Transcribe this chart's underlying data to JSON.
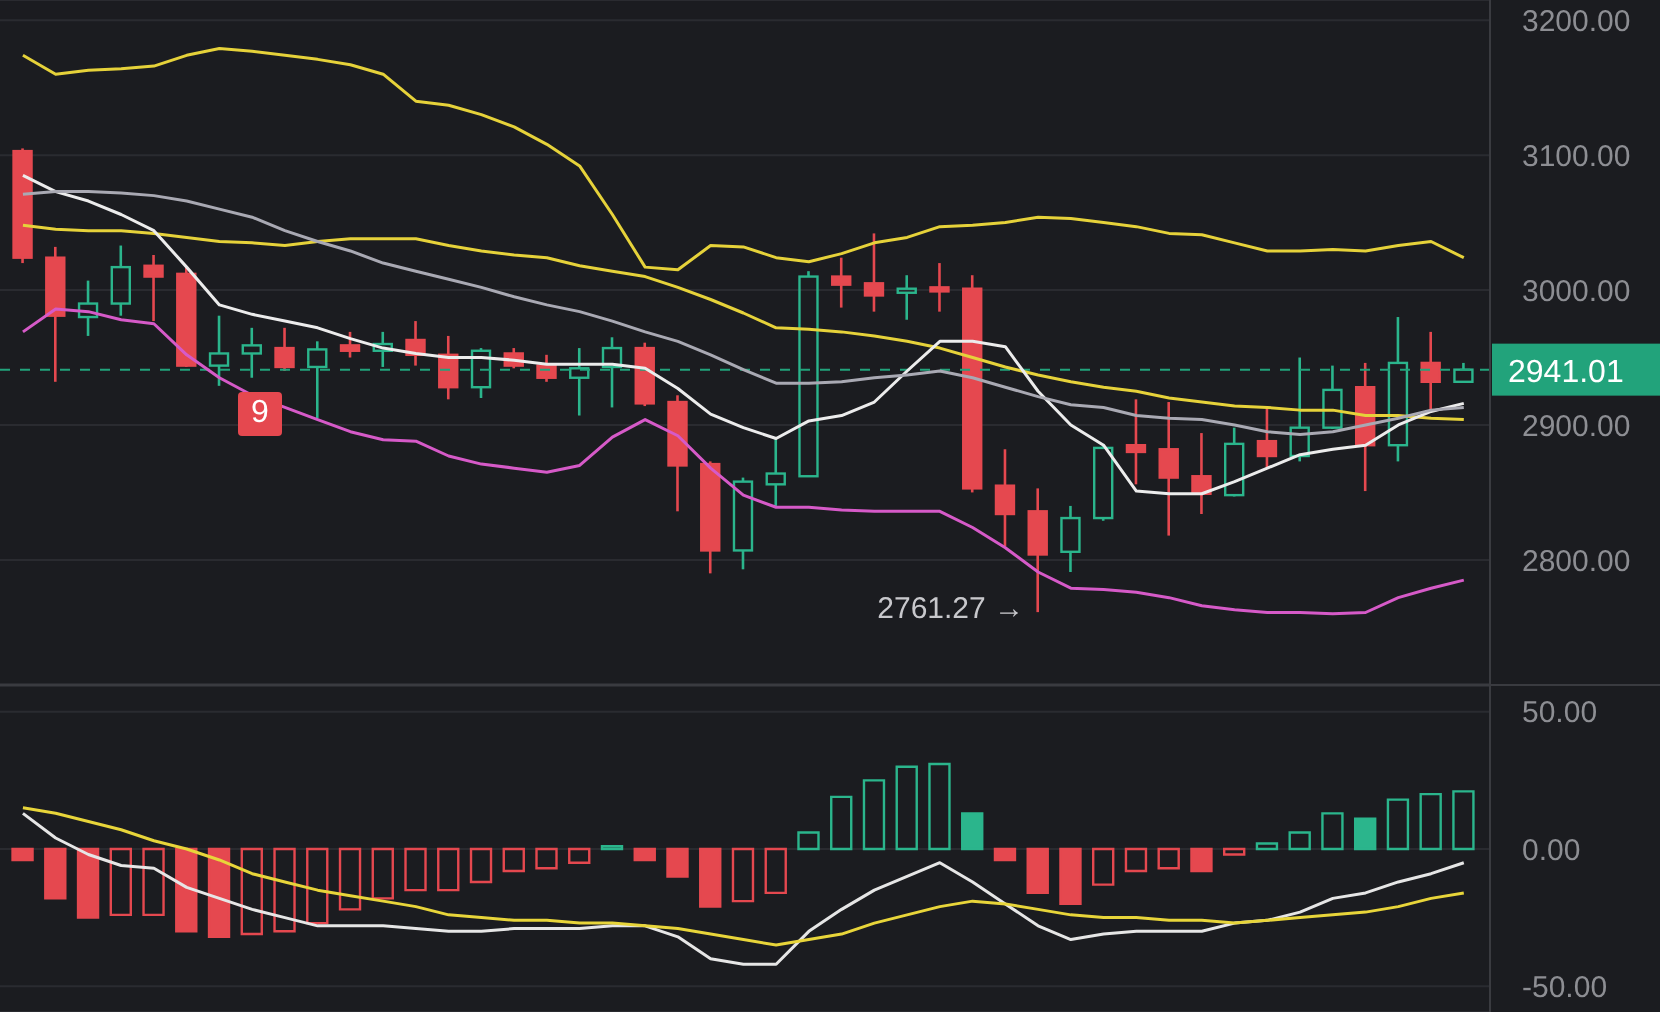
{
  "chart_data": [
    {
      "type": "candlestick",
      "categories": [
        null,
        null,
        null,
        null,
        null,
        null,
        null,
        null,
        null,
        null,
        null,
        null,
        null,
        null,
        null,
        null,
        null,
        null,
        null,
        null,
        null,
        null,
        null,
        null,
        null,
        null,
        null,
        null,
        null,
        null,
        null,
        null,
        null,
        null,
        null,
        null,
        null,
        null,
        null,
        null,
        null,
        null,
        null,
        null,
        null
      ],
      "ohlc": [
        [
          3103,
          3105,
          3020,
          3024
        ],
        [
          3024,
          3032,
          2932,
          2981
        ],
        [
          2980,
          3007,
          2966,
          2990
        ],
        [
          2990,
          3033,
          2981,
          3017
        ],
        [
          3018,
          3026,
          2977,
          3010
        ],
        [
          3012,
          3017,
          2943,
          2944
        ],
        [
          2944,
          2981,
          2929,
          2953
        ],
        [
          2953,
          2972,
          2935,
          2959
        ],
        [
          2957,
          2972,
          2940,
          2943
        ],
        [
          2943,
          2962,
          2905,
          2956
        ],
        [
          2959,
          2969,
          2950,
          2955
        ],
        [
          2955,
          2969,
          2943,
          2960
        ],
        [
          2963,
          2977,
          2944,
          2952
        ],
        [
          2952,
          2966,
          2919,
          2928
        ],
        [
          2928,
          2957,
          2920,
          2955
        ],
        [
          2953,
          2957,
          2942,
          2944
        ],
        [
          2944,
          2952,
          2932,
          2935
        ],
        [
          2935,
          2957,
          2907,
          2942
        ],
        [
          2943,
          2965,
          2913,
          2957
        ],
        [
          2957,
          2961,
          2914,
          2916
        ],
        [
          2917,
          2922,
          2836,
          2870
        ],
        [
          2871,
          2873,
          2790,
          2807
        ],
        [
          2807,
          2861,
          2793,
          2858
        ],
        [
          2856,
          2891,
          2840,
          2864
        ],
        [
          2862,
          3014,
          2862,
          3010
        ],
        [
          3010,
          3024,
          2987,
          3004
        ],
        [
          3005,
          3042,
          2984,
          2996
        ],
        [
          2998,
          3011,
          2978,
          3001
        ],
        [
          3002,
          3020,
          2984,
          2999
        ],
        [
          3001,
          3011,
          2850,
          2853
        ],
        [
          2855,
          2882,
          2810,
          2834
        ],
        [
          2836,
          2853,
          2761.27,
          2804
        ],
        [
          2806,
          2840,
          2791,
          2831
        ],
        [
          2831,
          2886,
          2829,
          2883
        ],
        [
          2885,
          2919,
          2856,
          2880
        ],
        [
          2882,
          2917,
          2818,
          2861
        ],
        [
          2862,
          2894,
          2834,
          2849
        ],
        [
          2848,
          2898,
          2847,
          2886
        ],
        [
          2888,
          2913,
          2868,
          2877
        ],
        [
          2877,
          2950,
          2873,
          2898
        ],
        [
          2898,
          2944,
          2897,
          2926
        ],
        [
          2928,
          2946,
          2851,
          2885
        ],
        [
          2885,
          2980,
          2873,
          2946
        ],
        [
          2946,
          2969,
          2910,
          2932
        ],
        [
          2932,
          2946,
          2932,
          2941.01
        ]
      ],
      "colors": [
        "#e5484f",
        "#e5484f",
        "#2bb58c",
        "#2bb58c",
        "#e5484f",
        "#e5484f",
        "#2bb58c",
        "#2bb58c",
        "#e5484f",
        "#2bb58c",
        "#e5484f",
        "#2bb58c",
        "#e5484f",
        "#e5484f",
        "#2bb58c",
        "#e5484f",
        "#e5484f",
        "#2bb58c",
        "#2bb58c",
        "#e5484f",
        "#e5484f",
        "#e5484f",
        "#2bb58c",
        "#2bb58c",
        "#2bb58c",
        "#e5484f",
        "#e5484f",
        "#2bb58c",
        "#e5484f",
        "#e5484f",
        "#e5484f",
        "#e5484f",
        "#2bb58c",
        "#2bb58c",
        "#e5484f",
        "#e5484f",
        "#e5484f",
        "#2bb58c",
        "#e5484f",
        "#2bb58c",
        "#2bb58c",
        "#e5484f",
        "#2bb58c",
        "#e5484f",
        "#2bb58c"
      ],
      "series": [
        {
          "type": "line",
          "color": "#e6d23a",
          "values": [
            3174,
            3160,
            3163,
            3164,
            3166,
            3174,
            3179,
            3177,
            3174,
            3171,
            3167,
            3160,
            3140,
            3137,
            3130,
            3121,
            3108,
            3092,
            3056,
            3017,
            3015,
            3033,
            3032,
            3024,
            3021,
            3027,
            3035,
            3039,
            3047,
            3048,
            3050,
            3054,
            3053,
            3050,
            3047,
            3042,
            3041,
            3035,
            3029,
            3029,
            3030,
            3029,
            3033,
            3036,
            3024
          ]
        },
        {
          "type": "line",
          "color": "#e6d23a",
          "values": [
            3048,
            3045,
            3044,
            3044,
            3042,
            3039,
            3036,
            3035,
            3033,
            3036,
            3038,
            3038,
            3038,
            3033,
            3029,
            3026,
            3024,
            3018,
            3014,
            3010,
            3002,
            2993,
            2983,
            2972,
            2971,
            2969,
            2966,
            2962,
            2957,
            2950,
            2943,
            2937,
            2932,
            2928,
            2925,
            2920,
            2917,
            2914,
            2913,
            2911,
            2911,
            2907,
            2907,
            2905,
            2904
          ]
        },
        {
          "type": "line",
          "color": "#d65ac8",
          "values": [
            2969,
            2986,
            2984,
            2978,
            2975,
            2952,
            2935,
            2922,
            2913,
            2904,
            2895,
            2889,
            2888,
            2877,
            2871,
            2868,
            2865,
            2870,
            2891,
            2904,
            2892,
            2868,
            2848,
            2839,
            2839,
            2837,
            2836,
            2836,
            2836,
            2824,
            2809,
            2791,
            2779,
            2778,
            2776,
            2772,
            2766,
            2763,
            2761,
            2761,
            2760,
            2761,
            2772,
            2779,
            2785
          ]
        },
        {
          "type": "line",
          "color": "#ececec",
          "values": [
            3085,
            3073,
            3066,
            3056,
            3044,
            3017,
            2989,
            2982,
            2977,
            2972,
            2964,
            2957,
            2953,
            2950,
            2950,
            2948,
            2945,
            2945,
            2945,
            2942,
            2927,
            2908,
            2898,
            2890,
            2903,
            2907,
            2917,
            2940,
            2962,
            2962,
            2958,
            2925,
            2900,
            2885,
            2851,
            2849,
            2849,
            2858,
            2868,
            2878,
            2882,
            2885,
            2900,
            2910,
            2916
          ]
        },
        {
          "type": "line",
          "color": "#a9a9b3",
          "values": [
            3071,
            3073,
            3073,
            3072,
            3070,
            3066,
            3060,
            3054,
            3044,
            3036,
            3029,
            3020,
            3014,
            3008,
            3002,
            2995,
            2989,
            2984,
            2977,
            2969,
            2962,
            2952,
            2941,
            2931,
            2931,
            2932,
            2935,
            2937,
            2940,
            2935,
            2928,
            2921,
            2915,
            2913,
            2907,
            2905,
            2904,
            2900,
            2895,
            2893,
            2895,
            2900,
            2905,
            2911,
            2913
          ]
        }
      ],
      "ylim": [
        2708,
        3215
      ],
      "yticks": [
        {
          "value": 2800,
          "label": "2800.00"
        },
        {
          "value": 2900,
          "label": "2900.00"
        },
        {
          "value": 3000,
          "label": "3000.00"
        },
        {
          "value": 3100,
          "label": "3100.00"
        },
        {
          "value": 3200,
          "label": "3200.00"
        }
      ],
      "grid": "y",
      "tick_labels": "y",
      "ref_lines": [
        {
          "axis": "y",
          "value": 2941.01,
          "label": "2941.01",
          "color": "#22a37b",
          "line_style": "dashed"
        }
      ],
      "annotations": [
        "9",
        "2761.27 →"
      ]
    },
    {
      "type": "bar",
      "categories": [
        null,
        null,
        null,
        null,
        null,
        null,
        null,
        null,
        null,
        null,
        null,
        null,
        null,
        null,
        null,
        null,
        null,
        null,
        null,
        null,
        null,
        null,
        null,
        null,
        null,
        null,
        null,
        null,
        null,
        null,
        null,
        null,
        null,
        null,
        null,
        null,
        null,
        null,
        null,
        null,
        null,
        null,
        null,
        null,
        null
      ],
      "series": [
        {
          "type": "bar",
          "values": [
            -4,
            -18,
            -25,
            -24,
            -24,
            -30,
            -32,
            -31,
            -30,
            -27,
            -22,
            -18,
            -15,
            -15,
            -12,
            -8,
            -7,
            -5,
            1,
            -4,
            -10,
            -21,
            -19,
            -16,
            6,
            19,
            25,
            30,
            31,
            13,
            -4,
            -16,
            -20,
            -13,
            -8,
            -7,
            -8,
            -2,
            2,
            6,
            13,
            11,
            18,
            20,
            21
          ],
          "colors": [
            "#e5484f",
            "#e5484f",
            "#e5484f",
            "#e5484f",
            "#e5484f",
            "#e5484f",
            "#e5484f",
            "#e5484f",
            "#e5484f",
            "#e5484f",
            "#e5484f",
            "#e5484f",
            "#e5484f",
            "#e5484f",
            "#e5484f",
            "#e5484f",
            "#e5484f",
            "#e5484f",
            "#2bb58c",
            "#e5484f",
            "#e5484f",
            "#e5484f",
            "#e5484f",
            "#e5484f",
            "#2bb58c",
            "#2bb58c",
            "#2bb58c",
            "#2bb58c",
            "#2bb58c",
            "#2bb58c",
            "#e5484f",
            "#e5484f",
            "#e5484f",
            "#e5484f",
            "#e5484f",
            "#e5484f",
            "#e5484f",
            "#e5484f",
            "#2bb58c",
            "#2bb58c",
            "#2bb58c",
            "#2bb58c",
            "#2bb58c",
            "#2bb58c",
            "#2bb58c"
          ]
        },
        {
          "type": "line",
          "color": "#e6e6e6",
          "values": [
            13,
            4,
            -2,
            -6,
            -7,
            -14,
            -18,
            -22,
            -25,
            -28,
            -28,
            -28,
            -29,
            -30,
            -30,
            -29,
            -29,
            -29,
            -28,
            -28,
            -32,
            -40,
            -42,
            -42,
            -30,
            -22,
            -15,
            -10,
            -5,
            -12,
            -20,
            -28,
            -33,
            -31,
            -30,
            -30,
            -30,
            -27,
            -26,
            -23,
            -18,
            -16,
            -12,
            -9,
            -5
          ]
        },
        {
          "type": "line",
          "color": "#e8d53a",
          "values": [
            15,
            13,
            10,
            7,
            3,
            0,
            -4,
            -9,
            -12,
            -15,
            -17,
            -19,
            -21,
            -24,
            -25,
            -26,
            -26,
            -27,
            -27,
            -28,
            -29,
            -31,
            -33,
            -35,
            -33,
            -31,
            -27,
            -24,
            -21,
            -19,
            -20,
            -22,
            -24,
            -25,
            -25,
            -26,
            -26,
            -27,
            -26,
            -25,
            -24,
            -23,
            -21,
            -18,
            -16
          ]
        }
      ],
      "ylim": [
        -59.4,
        59.4
      ],
      "yticks": [
        {
          "value": -50,
          "label": "-50.00"
        },
        {
          "value": 0,
          "label": "0.00"
        },
        {
          "value": 50,
          "label": "50.00"
        }
      ],
      "grid": "y",
      "tick_labels": "y"
    }
  ]
}
